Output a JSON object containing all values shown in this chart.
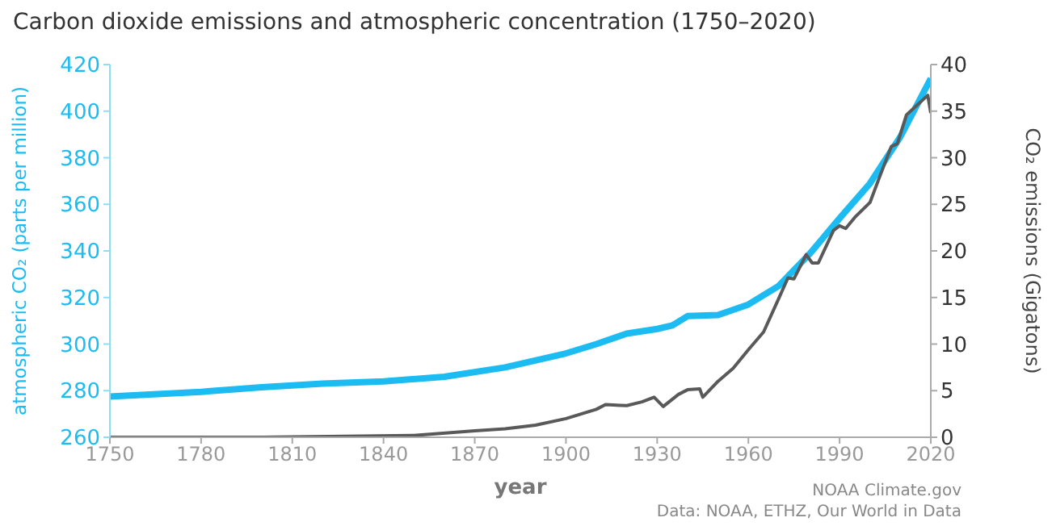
{
  "chart_data": {
    "type": "line",
    "title": "Carbon dioxide emissions and atmospheric concentration (1750–2020)",
    "xlabel": "year",
    "ylabel": "atmospheric CO₂ (parts per million)",
    "y2label": "CO₂ emissions (Gigatons)",
    "annotations": [
      "NOAA Climate.gov",
      "Data: NOAA, ETHZ, Our World in Data"
    ],
    "xlim": [
      1750,
      2020
    ],
    "xticks": [
      1750,
      1780,
      1810,
      1840,
      1870,
      1900,
      1930,
      1960,
      1990,
      2020
    ],
    "ylim": [
      260,
      420
    ],
    "yticks": [
      260,
      280,
      300,
      320,
      340,
      360,
      380,
      400,
      420
    ],
    "y2lim": [
      0,
      40
    ],
    "y2ticks": [
      0,
      5,
      10,
      15,
      20,
      25,
      30,
      35,
      40
    ],
    "marker": "none",
    "line_style": "solid",
    "series": [
      {
        "color": "#595959",
        "axis": "y2",
        "x": [
          1750,
          1800,
          1850,
          1870,
          1880,
          1890,
          1900,
          1910,
          1913,
          1920,
          1925,
          1929,
          1932,
          1937,
          1940,
          1944,
          1945,
          1950,
          1955,
          1960,
          1965,
          1970,
          1973,
          1975,
          1979,
          1981,
          1983,
          1988,
          1990,
          1992,
          1995,
          2000,
          2003,
          2007,
          2009,
          2012,
          2015,
          2019,
          2020
        ],
        "values": [
          0,
          0,
          0.2,
          0.7,
          0.9,
          1.3,
          2.0,
          3.0,
          3.5,
          3.4,
          3.8,
          4.3,
          3.3,
          4.6,
          5.1,
          5.2,
          4.3,
          6.0,
          7.4,
          9.4,
          11.3,
          14.9,
          17.1,
          17.0,
          19.6,
          18.7,
          18.7,
          22.2,
          22.7,
          22.4,
          23.6,
          25.2,
          27.8,
          31.2,
          31.5,
          34.6,
          35.5,
          36.7,
          34.8
        ]
      },
      {
        "color": "#1cbcf2",
        "axis": "y",
        "x": [
          1750,
          1780,
          1800,
          1820,
          1840,
          1860,
          1880,
          1900,
          1910,
          1920,
          1930,
          1935,
          1940,
          1950,
          1960,
          1970,
          1980,
          1990,
          2000,
          2010,
          2020
        ],
        "values": [
          277.5,
          279.5,
          281.5,
          283,
          284,
          286,
          290,
          296,
          300,
          304.5,
          306.5,
          308,
          312,
          312.5,
          317,
          325,
          338.5,
          354,
          369,
          389,
          414
        ]
      }
    ]
  }
}
